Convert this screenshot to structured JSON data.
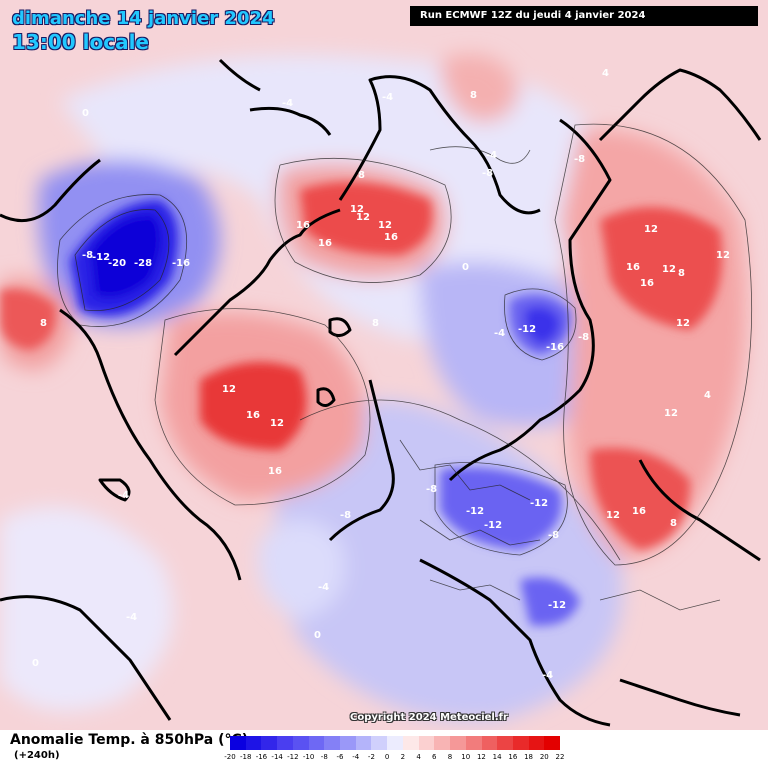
{
  "header": {
    "date_title": "dimanche 14 janvier 2024",
    "local_time": "13:00 locale",
    "run_info": "Run ECMWF 12Z du jeudi 4 janvier 2024"
  },
  "footer": {
    "variable_label": "Anomalie Temp. à 850hPa (°C)",
    "lead_time": "(+240h)",
    "copyright": "Copyright 2024 Meteociel.fr"
  },
  "color_scale": {
    "ticks": [
      "-20",
      "-18",
      "-16",
      "-14",
      "-12",
      "-10",
      "-8",
      "-6",
      "-4",
      "-2",
      "0",
      "2",
      "4",
      "6",
      "8",
      "10",
      "12",
      "14",
      "16",
      "18",
      "20",
      "22"
    ],
    "colors": [
      "#0a00e0",
      "#1e14e6",
      "#3226ea",
      "#4a3ef0",
      "#5a52f2",
      "#6e68f4",
      "#8480f6",
      "#9a98f8",
      "#b4b4fa",
      "#d0d0fc",
      "#ececfe",
      "#fde8e8",
      "#fbd0d0",
      "#f8b4b4",
      "#f59898",
      "#f27c7c",
      "#ef6060",
      "#ec4444",
      "#e92a2a",
      "#e61414",
      "#e30000"
    ]
  },
  "contour_labels": [
    {
      "text": "-8"
    },
    {
      "text": "-12"
    },
    {
      "text": "-20"
    },
    {
      "text": "-28"
    },
    {
      "text": "-16"
    },
    {
      "text": "0"
    },
    {
      "text": "8"
    },
    {
      "text": "12"
    },
    {
      "text": "12"
    },
    {
      "text": "12"
    },
    {
      "text": "16"
    },
    {
      "text": "16"
    },
    {
      "text": "16"
    },
    {
      "text": "8"
    },
    {
      "text": "12"
    },
    {
      "text": "16"
    },
    {
      "text": "12"
    },
    {
      "text": "16"
    },
    {
      "text": "-12"
    },
    {
      "text": "-16"
    },
    {
      "text": "-8"
    },
    {
      "text": "-4"
    },
    {
      "text": "12"
    },
    {
      "text": "16"
    },
    {
      "text": "12"
    },
    {
      "text": "8"
    },
    {
      "text": "12"
    },
    {
      "text": "16"
    },
    {
      "text": "12"
    },
    {
      "text": "-8"
    },
    {
      "text": "-12"
    },
    {
      "text": "-12"
    },
    {
      "text": "-12"
    },
    {
      "text": "-8"
    },
    {
      "text": "-12"
    },
    {
      "text": "-4"
    },
    {
      "text": "-4"
    },
    {
      "text": "-8"
    },
    {
      "text": "-4"
    },
    {
      "text": "0"
    },
    {
      "text": "0"
    },
    {
      "text": "4"
    },
    {
      "text": "8"
    },
    {
      "text": "-4"
    },
    {
      "text": "-4"
    },
    {
      "text": "-4"
    },
    {
      "text": "-8"
    },
    {
      "text": "-8"
    },
    {
      "text": "12"
    },
    {
      "text": "16"
    },
    {
      "text": "8"
    },
    {
      "text": "12"
    },
    {
      "text": "-4"
    },
    {
      "text": "0"
    },
    {
      "text": "8"
    },
    {
      "text": "4"
    }
  ]
}
